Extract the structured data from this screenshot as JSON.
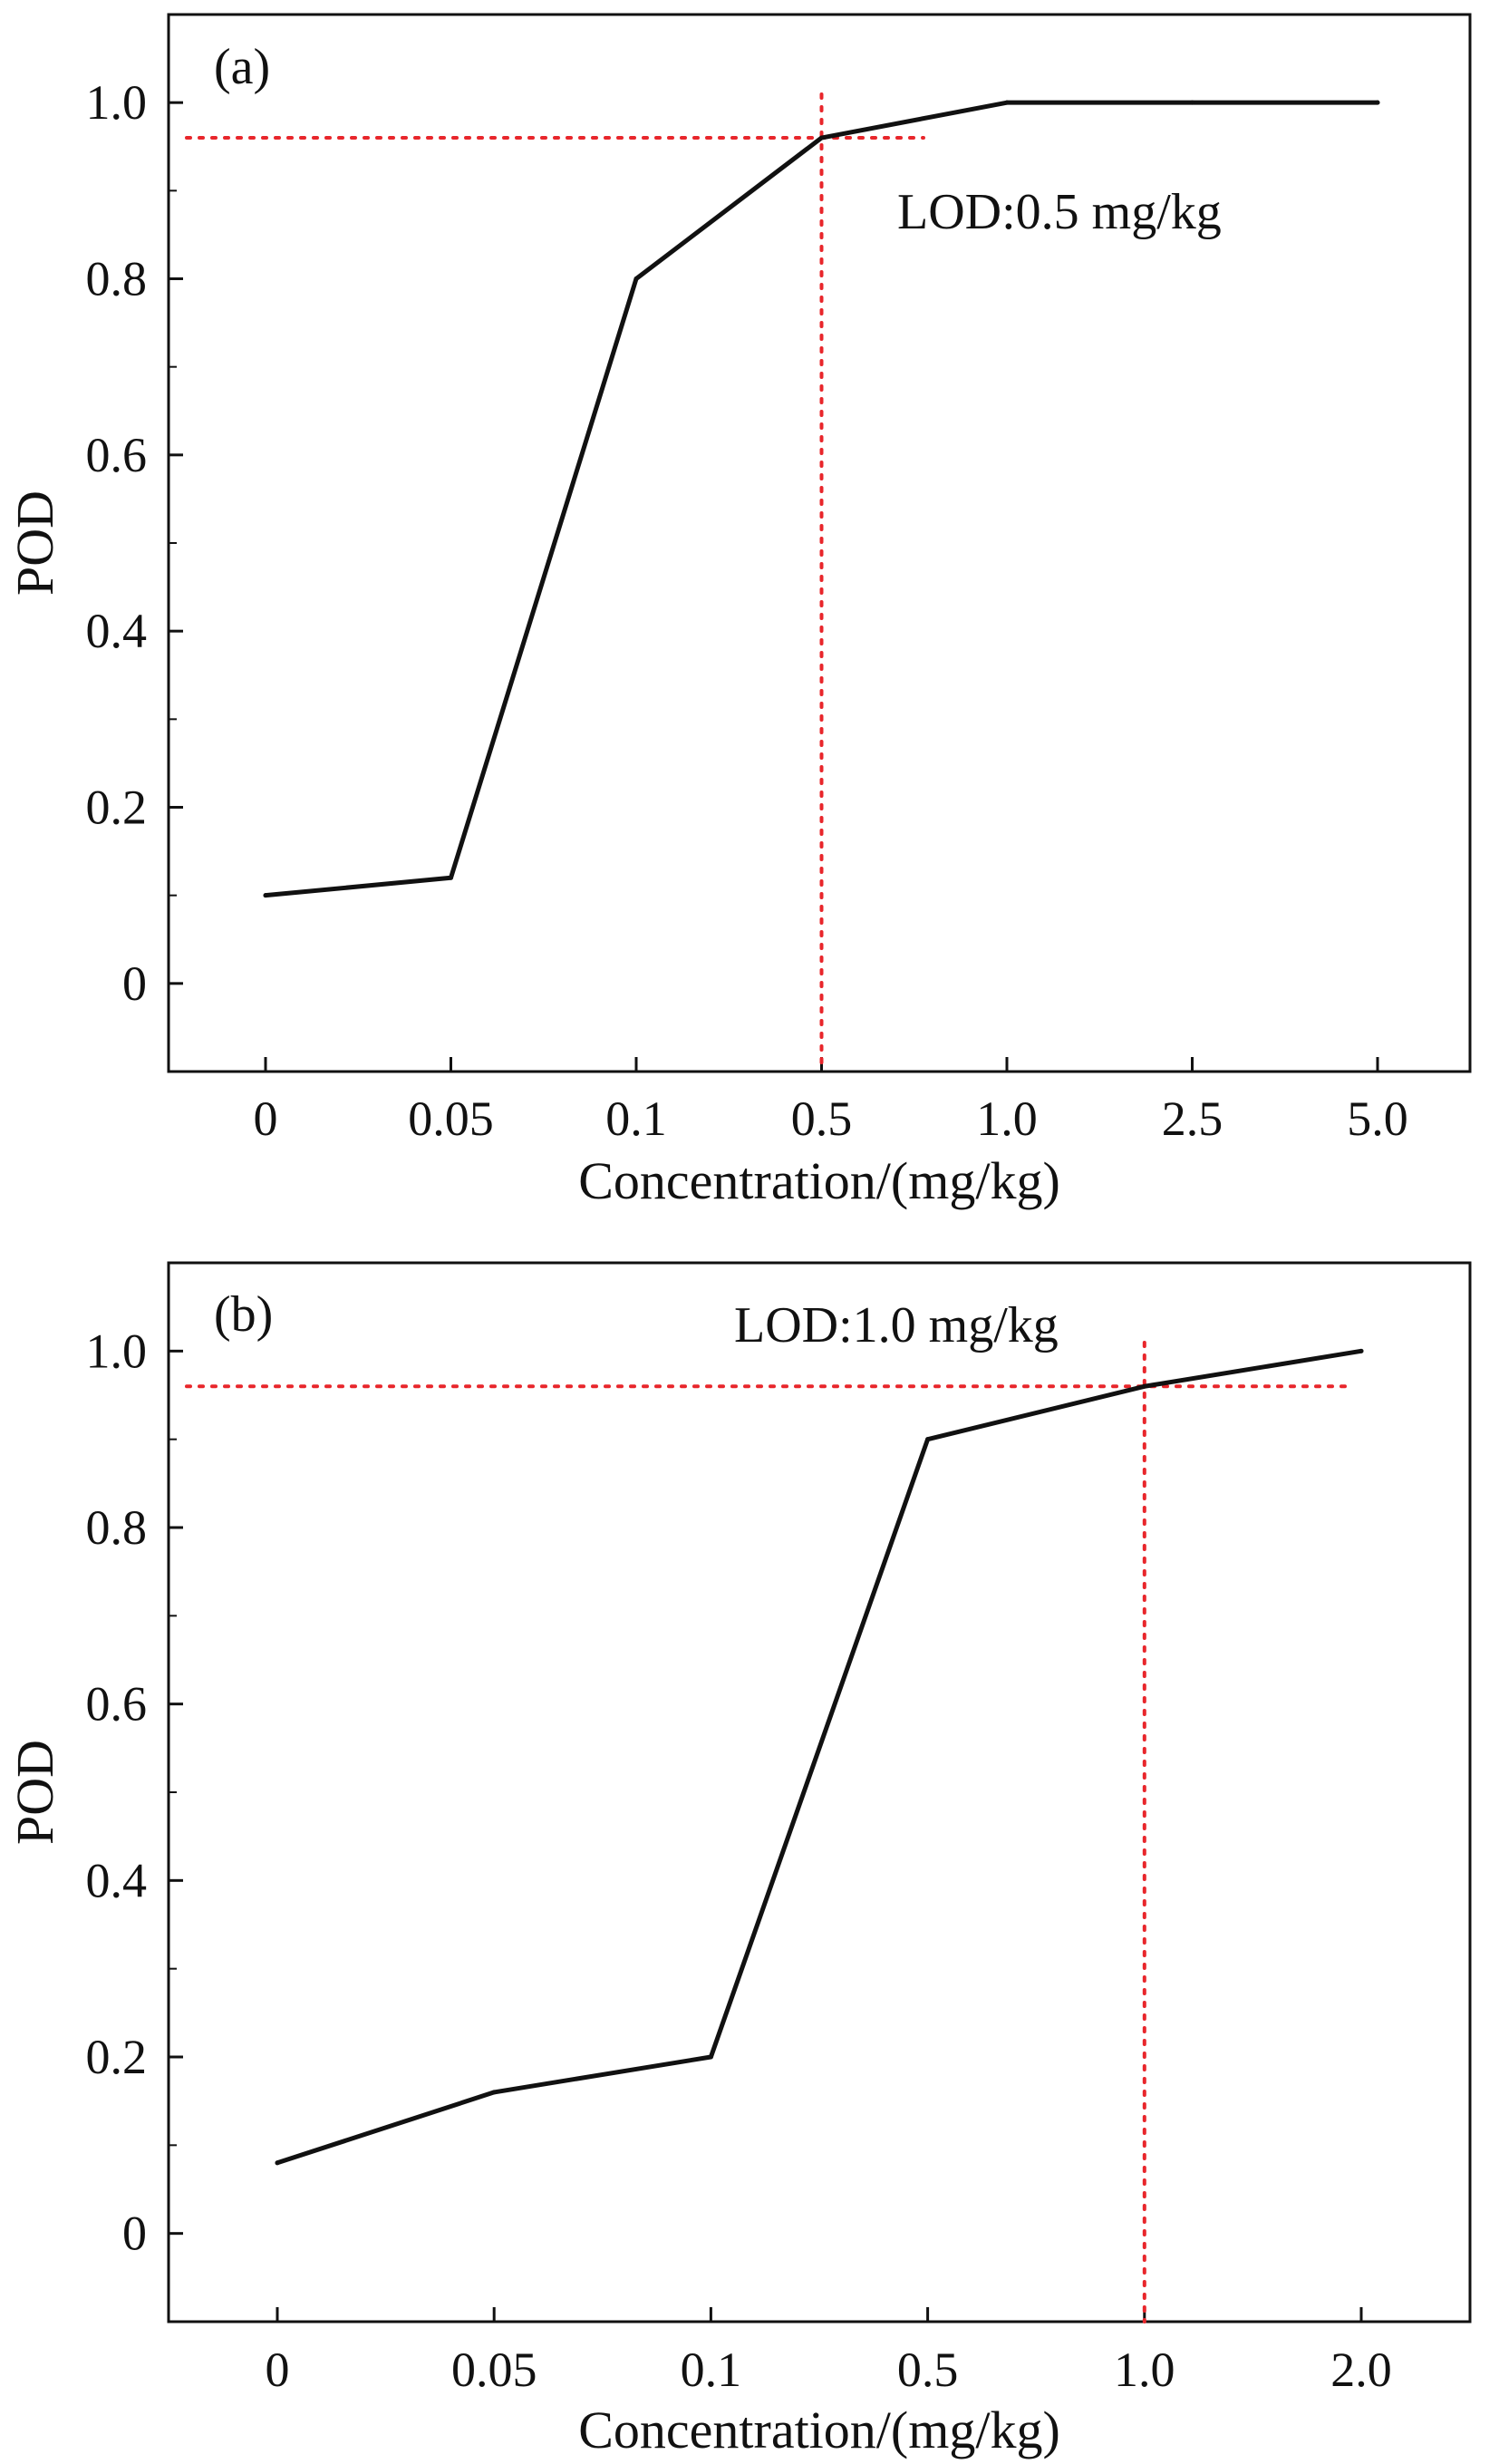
{
  "chart_data": [
    {
      "type": "line",
      "panel_label": "(a)",
      "xlabel": "Concentration/(mg/kg)",
      "ylabel": "POD",
      "categories": [
        "0",
        "0.05",
        "0.1",
        "0.5",
        "1.0",
        "2.5",
        "5.0"
      ],
      "series": [
        {
          "values": [
            0.1,
            0.12,
            0.8,
            0.96,
            1.0,
            1.0,
            1.0
          ]
        }
      ],
      "ylim": [
        -0.1,
        1.1
      ],
      "yticks": [
        "0",
        "0.2",
        "0.4",
        "0.6",
        "0.8",
        "1.0"
      ],
      "reference": {
        "y": 0.96,
        "x_category": "0.5",
        "horizontal_end_category_pos": 3.55
      },
      "annotation": "LOD:0.5 mg/kg",
      "grid": false,
      "colors": {
        "line": "#111111",
        "reference": "#e8262b"
      }
    },
    {
      "type": "line",
      "panel_label": "(b)",
      "xlabel": "Concentration/(mg/kg)",
      "ylabel": "POD",
      "categories": [
        "0",
        "0.05",
        "0.1",
        "0.5",
        "1.0",
        "2.0"
      ],
      "series": [
        {
          "values": [
            0.08,
            0.16,
            0.2,
            0.9,
            0.96,
            1.0
          ]
        }
      ],
      "ylim": [
        -0.1,
        1.1
      ],
      "yticks": [
        "0",
        "0.2",
        "0.4",
        "0.6",
        "0.8",
        "1.0"
      ],
      "reference": {
        "y": 0.96,
        "x_category": "1.0",
        "horizontal_end_category_pos": 4.95
      },
      "annotation": "LOD:1.0 mg/kg",
      "grid": false,
      "colors": {
        "line": "#111111",
        "reference": "#e8262b"
      }
    }
  ]
}
